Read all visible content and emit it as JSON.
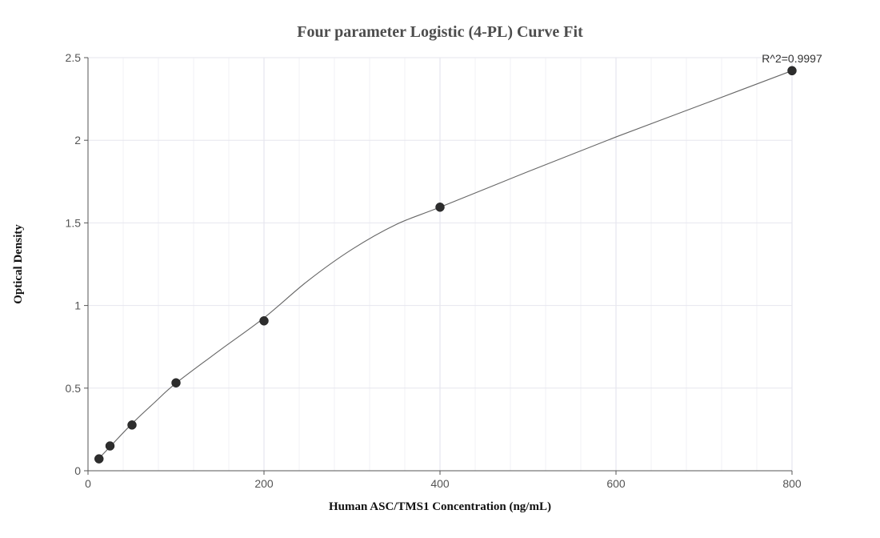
{
  "chart_data": {
    "type": "scatter",
    "title": "Four parameter Logistic (4-PL) Curve Fit",
    "xlabel": "Human ASC/TMS1 Concentration (ng/mL)",
    "ylabel": "Optical Density",
    "xlim": [
      0,
      800
    ],
    "ylim": [
      0,
      2.5
    ],
    "x_ticks": [
      0,
      200,
      400,
      600,
      800
    ],
    "y_ticks": [
      0,
      0.5,
      1,
      1.5,
      2,
      2.5
    ],
    "x_tick_labels": [
      "0",
      "200",
      "400",
      "600",
      "800"
    ],
    "y_tick_labels": [
      "0",
      "0.5",
      "1",
      "1.5",
      "2",
      "2.5"
    ],
    "grid": true,
    "series": [
      {
        "type": "scatter",
        "x": [
          12.5,
          25,
          50,
          100,
          200,
          400,
          800
        ],
        "y": [
          0.072,
          0.15,
          0.277,
          0.532,
          0.907,
          1.595,
          2.421
        ],
        "color": "#2d2d2d"
      },
      {
        "type": "line",
        "x": [
          12.5,
          25,
          50,
          75,
          100,
          150,
          200,
          250,
          300,
          350,
          400,
          500,
          600,
          700,
          800
        ],
        "y": [
          0.075,
          0.145,
          0.285,
          0.41,
          0.53,
          0.73,
          0.925,
          1.15,
          1.34,
          1.49,
          1.595,
          1.81,
          2.02,
          2.22,
          2.421
        ],
        "color": "#666666"
      }
    ],
    "annotation": "R^2=0.9997",
    "colors": {
      "grid_major": "#e6e6ee",
      "grid_minor": "#f2f2f6",
      "axis": "#555555",
      "marker": "#2d2d2d",
      "curve": "#666666"
    }
  }
}
